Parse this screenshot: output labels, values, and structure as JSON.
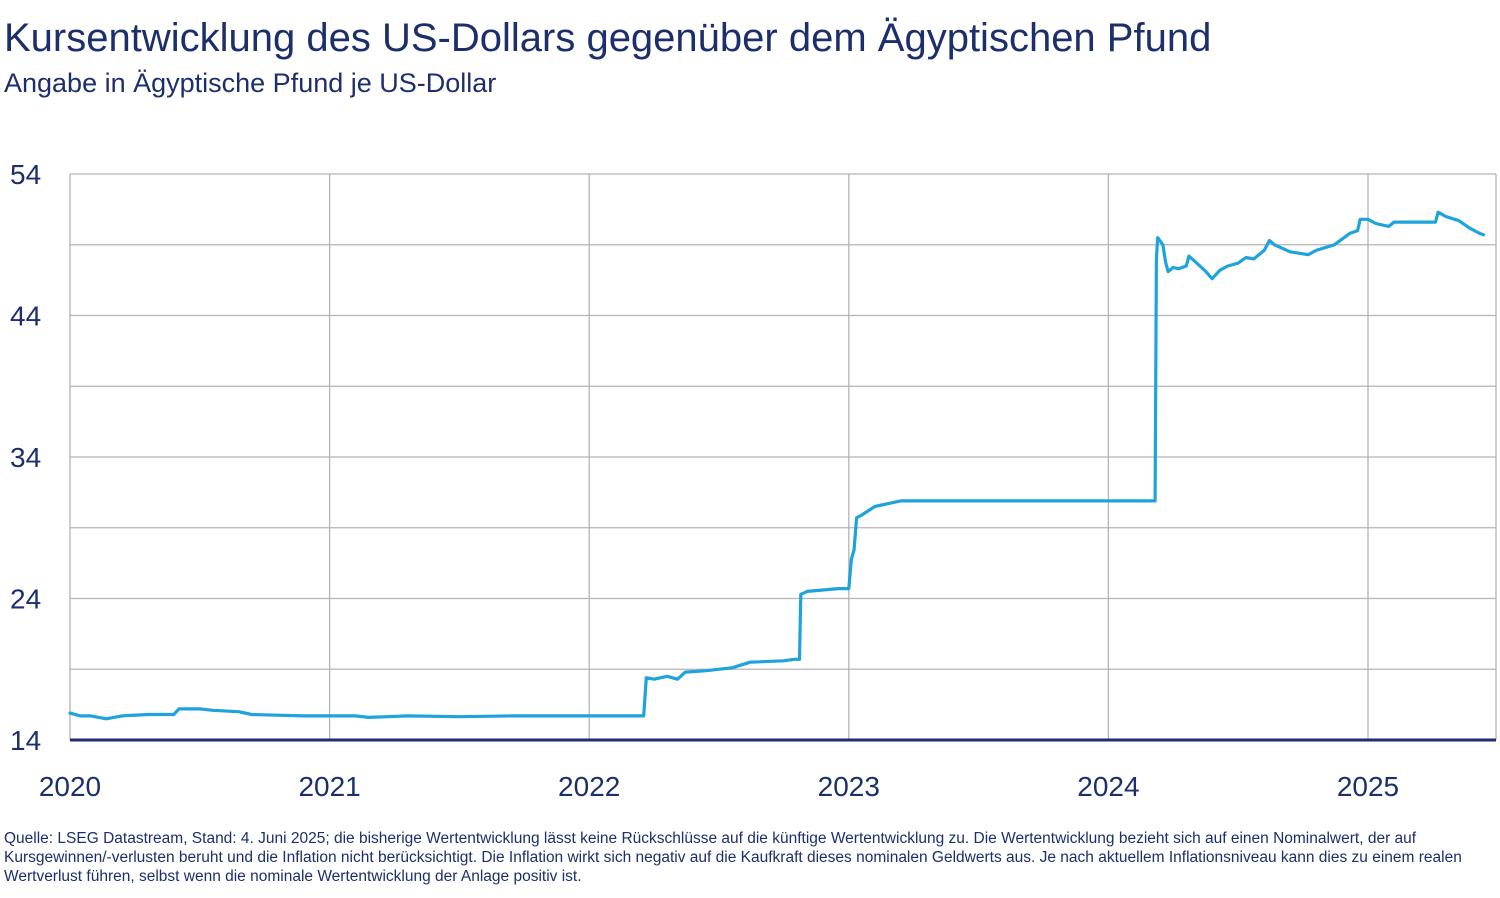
{
  "header": {
    "title": "Kursentwicklung des US-Dollars gegenüber dem Ägyptischen Pfund",
    "subtitle": "Angabe in Ägyptische Pfund je US-Dollar"
  },
  "footnote": "Quelle: LSEG Datastream, Stand: 4. Juni 2025; die bisherige Wertentwicklung lässt keine Rückschlüsse auf die künftige Wertentwicklung zu. Die Wertentwicklung bezieht sich auf einen Nominalwert, der auf Kursgewinnen/-verlusten beruht und die Inflation nicht berücksichtigt. Die Inflation wirkt sich negativ auf die Kaufkraft dieses nominalen Geldwerts aus. Je nach aktuellem Inflationsniveau kann dies zu einem realen Wertverlust führen, selbst wenn die nominale Wertentwicklung der Anlage positiv ist.",
  "colors": {
    "line": "#1ea3dc",
    "axis": "#1c2f6b",
    "grid": "#b4b4b4",
    "text": "#1c2f6b"
  },
  "chart_data": {
    "type": "line",
    "title": "Kursentwicklung des US-Dollars gegenüber dem Ägyptischen Pfund",
    "subtitle": "Angabe in Ägyptische Pfund je US-Dollar",
    "xlabel": "",
    "ylabel": "",
    "xlim": [
      2020.0,
      2025.48
    ],
    "ylim": [
      14,
      54
    ],
    "y_ticks": [
      14,
      24,
      34,
      44,
      54
    ],
    "y_gridlines": [
      19,
      24,
      29,
      34,
      39,
      44,
      49,
      54
    ],
    "x_ticks": [
      2020,
      2021,
      2022,
      2023,
      2024,
      2025
    ],
    "x_tick_labels": [
      "2020",
      "2021",
      "2022",
      "2023",
      "2024",
      "2025"
    ],
    "grid": true,
    "legend": "none",
    "series": [
      {
        "values": [
          [
            2020.0,
            15.9
          ],
          [
            2020.04,
            15.7
          ],
          [
            2020.08,
            15.7
          ],
          [
            2020.14,
            15.5
          ],
          [
            2020.2,
            15.7
          ],
          [
            2020.3,
            15.8
          ],
          [
            2020.4,
            15.8
          ],
          [
            2020.42,
            16.2
          ],
          [
            2020.5,
            16.2
          ],
          [
            2020.55,
            16.1
          ],
          [
            2020.65,
            16.0
          ],
          [
            2020.7,
            15.8
          ],
          [
            2020.8,
            15.75
          ],
          [
            2020.9,
            15.7
          ],
          [
            2021.0,
            15.7
          ],
          [
            2021.1,
            15.7
          ],
          [
            2021.15,
            15.6
          ],
          [
            2021.3,
            15.7
          ],
          [
            2021.5,
            15.65
          ],
          [
            2021.7,
            15.7
          ],
          [
            2021.9,
            15.7
          ],
          [
            2022.0,
            15.7
          ],
          [
            2022.1,
            15.7
          ],
          [
            2022.21,
            15.7
          ],
          [
            2022.22,
            18.4
          ],
          [
            2022.25,
            18.3
          ],
          [
            2022.3,
            18.5
          ],
          [
            2022.34,
            18.3
          ],
          [
            2022.37,
            18.8
          ],
          [
            2022.45,
            18.9
          ],
          [
            2022.55,
            19.1
          ],
          [
            2022.62,
            19.5
          ],
          [
            2022.75,
            19.6
          ],
          [
            2022.79,
            19.7
          ],
          [
            2022.81,
            19.7
          ],
          [
            2022.815,
            24.3
          ],
          [
            2022.84,
            24.5
          ],
          [
            2022.9,
            24.6
          ],
          [
            2022.96,
            24.7
          ],
          [
            2023.0,
            24.7
          ],
          [
            2023.01,
            26.8
          ],
          [
            2023.02,
            27.4
          ],
          [
            2023.03,
            29.7
          ],
          [
            2023.05,
            29.9
          ],
          [
            2023.1,
            30.5
          ],
          [
            2023.15,
            30.7
          ],
          [
            2023.2,
            30.9
          ],
          [
            2023.4,
            30.9
          ],
          [
            2023.6,
            30.9
          ],
          [
            2023.8,
            30.9
          ],
          [
            2024.0,
            30.9
          ],
          [
            2024.18,
            30.9
          ],
          [
            2024.185,
            48.0
          ],
          [
            2024.19,
            49.5
          ],
          [
            2024.21,
            49.0
          ],
          [
            2024.22,
            47.8
          ],
          [
            2024.23,
            47.1
          ],
          [
            2024.25,
            47.4
          ],
          [
            2024.27,
            47.3
          ],
          [
            2024.3,
            47.5
          ],
          [
            2024.31,
            48.2
          ],
          [
            2024.34,
            47.7
          ],
          [
            2024.37,
            47.2
          ],
          [
            2024.4,
            46.6
          ],
          [
            2024.43,
            47.2
          ],
          [
            2024.46,
            47.5
          ],
          [
            2024.5,
            47.7
          ],
          [
            2024.53,
            48.1
          ],
          [
            2024.56,
            48.0
          ],
          [
            2024.6,
            48.6
          ],
          [
            2024.62,
            49.3
          ],
          [
            2024.64,
            49.0
          ],
          [
            2024.7,
            48.5
          ],
          [
            2024.77,
            48.3
          ],
          [
            2024.8,
            48.6
          ],
          [
            2024.87,
            49.0
          ],
          [
            2024.93,
            49.8
          ],
          [
            2024.96,
            50.0
          ],
          [
            2024.97,
            50.8
          ],
          [
            2025.0,
            50.8
          ],
          [
            2025.03,
            50.5
          ],
          [
            2025.08,
            50.3
          ],
          [
            2025.1,
            50.6
          ],
          [
            2025.2,
            50.6
          ],
          [
            2025.26,
            50.6
          ],
          [
            2025.27,
            51.3
          ],
          [
            2025.3,
            51.0
          ],
          [
            2025.35,
            50.7
          ],
          [
            2025.39,
            50.2
          ],
          [
            2025.43,
            49.8
          ],
          [
            2025.445,
            49.7
          ]
        ]
      }
    ]
  }
}
